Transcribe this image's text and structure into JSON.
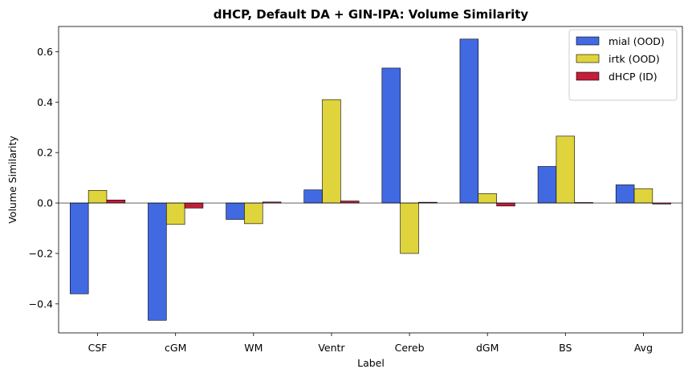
{
  "chart_data": {
    "type": "bar",
    "title": "dHCP, Default DA + GIN-IPA: Volume Similarity",
    "xlabel": "Label",
    "ylabel": "Volume Similarity",
    "categories": [
      "CSF",
      "cGM",
      "WM",
      "Ventr",
      "Cereb",
      "dGM",
      "BS",
      "Avg"
    ],
    "series": [
      {
        "name": "mial (OOD)",
        "color": "#4169e1",
        "values": [
          -0.36,
          -0.465,
          -0.065,
          0.052,
          0.535,
          0.65,
          0.145,
          0.072
        ]
      },
      {
        "name": "irtk (OOD)",
        "color": "#e0d43c",
        "values": [
          0.05,
          -0.085,
          -0.082,
          0.41,
          -0.2,
          0.037,
          0.265,
          0.057
        ]
      },
      {
        "name": "dHCP (ID)",
        "color": "#c41e3a",
        "values": [
          0.012,
          -0.02,
          0.004,
          0.008,
          0.003,
          -0.012,
          0.002,
          -0.004
        ]
      }
    ],
    "ylim": [
      -0.515,
      0.7
    ],
    "yticks": [
      -0.4,
      -0.2,
      0.0,
      0.2,
      0.4,
      0.6
    ],
    "ytick_labels": [
      "−0.4",
      "−0.2",
      "0.0",
      "0.2",
      "0.4",
      "0.6"
    ],
    "legend_position": "top-right",
    "grid": false,
    "zero_line": true
  }
}
